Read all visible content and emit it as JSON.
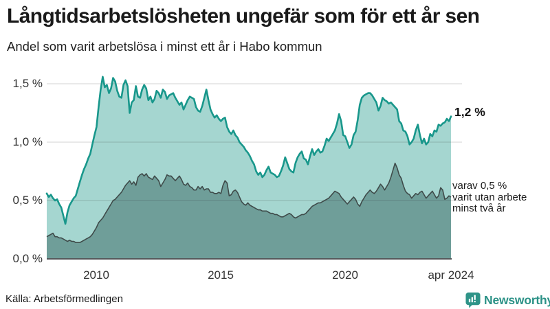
{
  "header": {
    "title": "Långtidsarbetslösheten ungefär som för ett år sen",
    "subtitle": "Andel som varit arbetslösa i minst ett år i Habo kommun"
  },
  "chart_data": {
    "type": "area",
    "title": "Långtidsarbetslösheten ungefär som för ett år sen",
    "subtitle": "Andel som varit arbetslösa i minst ett år i Habo kommun",
    "x_unit": "month",
    "x_start": "2008-01",
    "x_end": "2024-04",
    "ylim": [
      0,
      1.6
    ],
    "grid": "horizontal",
    "legend_position": "inline-annotations",
    "ytick_values": [
      0,
      0.5,
      1.0,
      1.5
    ],
    "ytick_labels": [
      "0,0 %",
      "0,5 %",
      "1,0 %",
      "1,5 %"
    ],
    "xtick_month_indices": [
      24,
      84,
      144,
      195
    ],
    "xtick_labels": [
      "2010",
      "2015",
      "2020",
      "apr 2024"
    ],
    "series": [
      {
        "name": "Andel som varit arbetslösa i minst ett år",
        "color": "#18978b",
        "fill": "#a5d6d0",
        "values": [
          0.56,
          0.53,
          0.55,
          0.52,
          0.5,
          0.51,
          0.47,
          0.44,
          0.37,
          0.3,
          0.4,
          0.46,
          0.49,
          0.52,
          0.54,
          0.6,
          0.66,
          0.72,
          0.77,
          0.81,
          0.86,
          0.9,
          0.98,
          1.06,
          1.13,
          1.3,
          1.45,
          1.56,
          1.47,
          1.49,
          1.42,
          1.46,
          1.55,
          1.52,
          1.44,
          1.39,
          1.38,
          1.49,
          1.53,
          1.48,
          1.25,
          1.34,
          1.36,
          1.48,
          1.39,
          1.38,
          1.45,
          1.49,
          1.46,
          1.36,
          1.39,
          1.34,
          1.37,
          1.44,
          1.42,
          1.38,
          1.45,
          1.43,
          1.37,
          1.4,
          1.41,
          1.42,
          1.38,
          1.35,
          1.32,
          1.34,
          1.28,
          1.32,
          1.36,
          1.39,
          1.38,
          1.37,
          1.3,
          1.27,
          1.26,
          1.31,
          1.38,
          1.45,
          1.36,
          1.28,
          1.24,
          1.21,
          1.23,
          1.2,
          1.18,
          1.2,
          1.21,
          1.13,
          1.09,
          1.07,
          1.1,
          1.06,
          1.04,
          1.0,
          0.98,
          0.96,
          0.93,
          0.91,
          0.88,
          0.84,
          0.81,
          0.75,
          0.72,
          0.74,
          0.7,
          0.72,
          0.76,
          0.79,
          0.74,
          0.73,
          0.72,
          0.7,
          0.71,
          0.75,
          0.8,
          0.87,
          0.82,
          0.77,
          0.75,
          0.74,
          0.82,
          0.87,
          0.9,
          0.92,
          0.86,
          0.85,
          0.81,
          0.88,
          0.94,
          0.89,
          0.92,
          0.94,
          0.91,
          0.92,
          0.97,
          1.03,
          1.01,
          1.04,
          1.07,
          1.1,
          1.16,
          1.24,
          1.18,
          1.06,
          1.05,
          1.0,
          0.95,
          0.98,
          1.06,
          1.09,
          1.19,
          1.32,
          1.38,
          1.4,
          1.41,
          1.42,
          1.42,
          1.4,
          1.37,
          1.34,
          1.27,
          1.31,
          1.38,
          1.36,
          1.35,
          1.33,
          1.34,
          1.32,
          1.3,
          1.28,
          1.18,
          1.16,
          1.1,
          1.09,
          1.05,
          0.98,
          1.0,
          1.03,
          1.1,
          1.15,
          1.06,
          0.99,
          1.03,
          0.98,
          1.0,
          1.07,
          1.05,
          1.1,
          1.09,
          1.15,
          1.14,
          1.16,
          1.17,
          1.2,
          1.18,
          1.22
        ]
      },
      {
        "name": "varav utan arbete minst två år",
        "color": "#3f4b4a",
        "fill": "#6f9e99",
        "values": [
          0.19,
          0.2,
          0.21,
          0.22,
          0.19,
          0.19,
          0.18,
          0.18,
          0.17,
          0.16,
          0.15,
          0.16,
          0.15,
          0.15,
          0.14,
          0.14,
          0.14,
          0.15,
          0.16,
          0.17,
          0.18,
          0.19,
          0.21,
          0.24,
          0.27,
          0.31,
          0.33,
          0.35,
          0.38,
          0.41,
          0.44,
          0.47,
          0.5,
          0.51,
          0.53,
          0.55,
          0.57,
          0.6,
          0.63,
          0.65,
          0.67,
          0.64,
          0.66,
          0.63,
          0.7,
          0.72,
          0.73,
          0.71,
          0.73,
          0.7,
          0.69,
          0.68,
          0.71,
          0.69,
          0.67,
          0.62,
          0.65,
          0.68,
          0.72,
          0.71,
          0.71,
          0.69,
          0.67,
          0.69,
          0.71,
          0.68,
          0.64,
          0.63,
          0.65,
          0.62,
          0.61,
          0.59,
          0.59,
          0.62,
          0.6,
          0.62,
          0.59,
          0.6,
          0.6,
          0.57,
          0.57,
          0.56,
          0.56,
          0.57,
          0.56,
          0.63,
          0.67,
          0.65,
          0.54,
          0.55,
          0.58,
          0.59,
          0.57,
          0.53,
          0.49,
          0.47,
          0.46,
          0.48,
          0.46,
          0.45,
          0.44,
          0.43,
          0.42,
          0.42,
          0.41,
          0.41,
          0.41,
          0.4,
          0.39,
          0.39,
          0.38,
          0.38,
          0.37,
          0.36,
          0.36,
          0.37,
          0.38,
          0.39,
          0.38,
          0.36,
          0.35,
          0.36,
          0.37,
          0.38,
          0.38,
          0.39,
          0.41,
          0.43,
          0.45,
          0.46,
          0.47,
          0.48,
          0.48,
          0.49,
          0.5,
          0.51,
          0.52,
          0.54,
          0.56,
          0.58,
          0.57,
          0.56,
          0.53,
          0.51,
          0.49,
          0.47,
          0.49,
          0.51,
          0.53,
          0.51,
          0.47,
          0.45,
          0.49,
          0.52,
          0.55,
          0.57,
          0.59,
          0.57,
          0.56,
          0.58,
          0.61,
          0.64,
          0.62,
          0.59,
          0.62,
          0.65,
          0.7,
          0.76,
          0.82,
          0.78,
          0.72,
          0.69,
          0.63,
          0.58,
          0.56,
          0.55,
          0.52,
          0.54,
          0.56,
          0.55,
          0.57,
          0.58,
          0.55,
          0.52,
          0.54,
          0.56,
          0.58,
          0.55,
          0.52,
          0.54,
          0.61,
          0.59,
          0.51,
          0.52,
          0.54,
          0.53
        ]
      }
    ],
    "annotations": {
      "end_label": "1,2 %",
      "secondary_lines": [
        "varav 0,5 %",
        "varit utan arbete",
        "minst två år"
      ]
    }
  },
  "footer": {
    "source": "Källa: Arbetsförmedlingen",
    "brand": "Newsworthy"
  },
  "colors": {
    "primary_line": "#18978b",
    "primary_fill": "#a5d6d0",
    "secondary_line": "#3f4b4a",
    "secondary_fill": "#6f9e99",
    "gridline": "#dcdcdc",
    "baseline": "#55585a",
    "brand_teal": "#2a9186"
  }
}
